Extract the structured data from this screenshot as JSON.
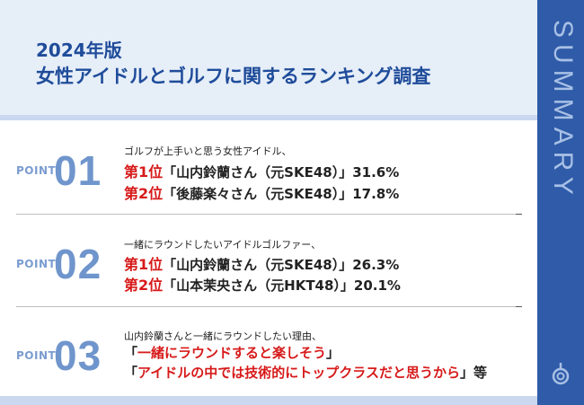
{
  "header": {
    "title_line1": "2024年版",
    "title_line2": "女性アイドルとゴルフに関するランキング調査"
  },
  "sidebar": {
    "label": "SUMMARY",
    "icon": "magnifier-icon"
  },
  "points": [
    {
      "label": "POINT",
      "number": "01",
      "subtitle": "ゴルフが上手いと思う女性アイドル、",
      "ranks": [
        {
          "pos": "第1位",
          "text": "「山内鈴蘭さん（元SKE48）」31.6%"
        },
        {
          "pos": "第2位",
          "text": "「後藤楽々さん（元SKE48）」17.8%"
        }
      ]
    },
    {
      "label": "POINT",
      "number": "02",
      "subtitle": "一緒にラウンドしたいアイドルゴルファー、",
      "ranks": [
        {
          "pos": "第1位",
          "text": "「山内鈴蘭さん（元SKE48）」26.3%"
        },
        {
          "pos": "第2位",
          "text": "「山本茉央さん（元HKT48）」20.1%"
        }
      ]
    },
    {
      "label": "POINT",
      "number": "03",
      "subtitle": "山内鈴蘭さんと一緒にラウンドしたい理由、",
      "reason1": {
        "open": "「",
        "text": "一緒にラウンドすると楽しそう",
        "close": "」"
      },
      "reason2": {
        "open": "「",
        "text": "アイドルの中では技術的にトップクラスだと思うから",
        "close": "」",
        "suffix": "等"
      }
    }
  ],
  "colors": {
    "accent_blue": "#1f4c9a",
    "sidebar_blue": "#2f5ba8",
    "highlight_red": "#d71a1a"
  }
}
